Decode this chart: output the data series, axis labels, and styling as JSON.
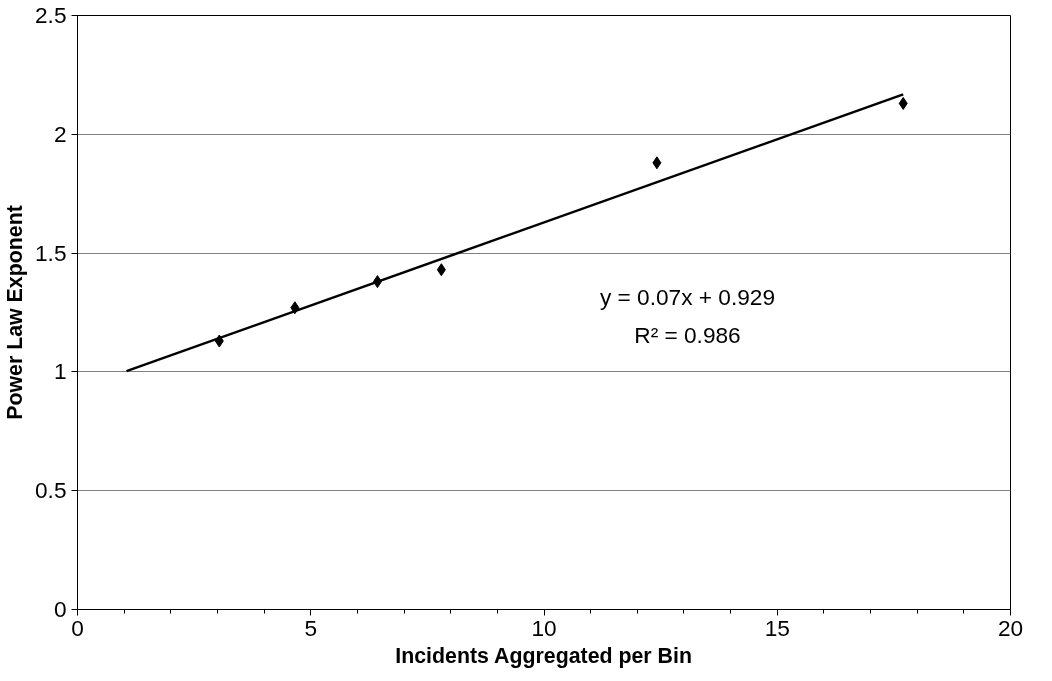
{
  "chart_data": {
    "type": "scatter",
    "xlabel": "Incidents Aggregated per Bin",
    "ylabel": "Power Law Exponent",
    "series": [
      {
        "color": "#000000",
        "marker": "diamond",
        "x": [
          3.04,
          4.66,
          6.43,
          7.8,
          12.42,
          17.7
        ],
        "values": [
          1.13,
          1.27,
          1.38,
          1.43,
          1.88,
          2.13
        ]
      },
      {
        "type": "line",
        "color": "#000000",
        "marker": "none",
        "x": [
          1.05,
          17.7
        ],
        "values": [
          1.003,
          2.168
        ]
      }
    ],
    "xlim": [
      0,
      20
    ],
    "ylim": [
      0,
      2.5
    ],
    "xticks": [
      0,
      5,
      10,
      15,
      20
    ],
    "yticks": [
      0,
      0.5,
      1,
      1.5,
      2,
      2.5
    ],
    "grid": "y",
    "annotations": [
      "y = 0.07x + 0.929",
      "R² = 0.986"
    ]
  }
}
